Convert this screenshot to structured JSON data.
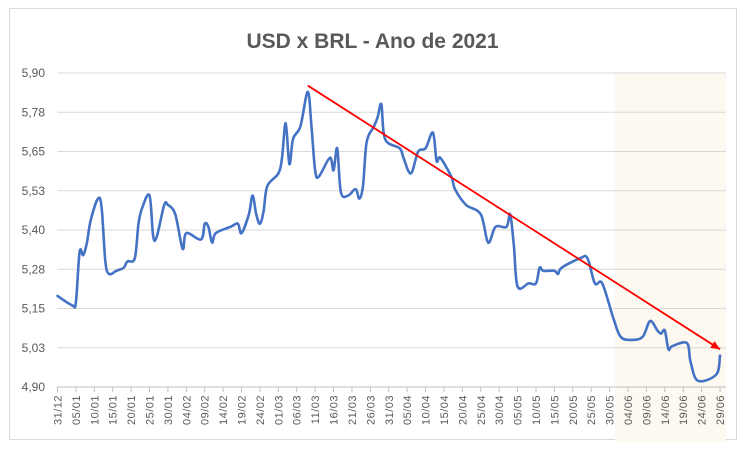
{
  "chart_data": {
    "type": "line",
    "title": "USD x BRL - Ano de 2021",
    "xlabel": "",
    "ylabel": "",
    "ylim": [
      4.9,
      5.9
    ],
    "yticks": [
      "4,90",
      "5,03",
      "5,15",
      "5,28",
      "5,40",
      "5,53",
      "5,65",
      "5,78",
      "5,90"
    ],
    "xticks": [
      "31/12",
      "05/01",
      "10/01",
      "15/01",
      "20/01",
      "25/01",
      "30/01",
      "04/02",
      "09/02",
      "14/02",
      "19/02",
      "24/02",
      "01/03",
      "06/03",
      "11/03",
      "16/03",
      "21/03",
      "26/03",
      "31/03",
      "05/04",
      "10/04",
      "15/04",
      "20/04",
      "25/04",
      "30/04",
      "05/05",
      "10/05",
      "15/05",
      "20/05",
      "25/05",
      "30/05",
      "04/06",
      "09/06",
      "14/06",
      "19/06",
      "24/06",
      "29/06"
    ],
    "xlim": [
      "31/12",
      "29/06"
    ],
    "grid": true,
    "line_color": "#4472c4",
    "highlight_region": {
      "from": "01/06",
      "to": "29/06",
      "color": "#fdf9f1"
    },
    "trend_arrow": {
      "from": [
        "09/03",
        5.86
      ],
      "to": [
        "29/06",
        5.02
      ],
      "color": "#ff0000"
    },
    "series": [
      {
        "values": [
          [
            "31/12",
            5.19
          ],
          [
            "04/01",
            5.16
          ],
          [
            "05/01",
            5.17
          ],
          [
            "06/01",
            5.33
          ],
          [
            "07/01",
            5.32
          ],
          [
            "08/01",
            5.36
          ],
          [
            "09/01",
            5.43
          ],
          [
            "11/01",
            5.5
          ],
          [
            "12/01",
            5.47
          ],
          [
            "13/01",
            5.3
          ],
          [
            "14/01",
            5.26
          ],
          [
            "16/01",
            5.27
          ],
          [
            "18/01",
            5.28
          ],
          [
            "19/01",
            5.3
          ],
          [
            "21/01",
            5.31
          ],
          [
            "22/01",
            5.42
          ],
          [
            "23/01",
            5.47
          ],
          [
            "25/01",
            5.51
          ],
          [
            "26/01",
            5.38
          ],
          [
            "27/01",
            5.38
          ],
          [
            "29/01",
            5.48
          ],
          [
            "30/01",
            5.48
          ],
          [
            "01/02",
            5.45
          ],
          [
            "03/02",
            5.34
          ],
          [
            "04/02",
            5.39
          ],
          [
            "08/02",
            5.37
          ],
          [
            "09/02",
            5.42
          ],
          [
            "10/02",
            5.41
          ],
          [
            "11/02",
            5.36
          ],
          [
            "12/02",
            5.39
          ],
          [
            "16/02",
            5.41
          ],
          [
            "18/02",
            5.42
          ],
          [
            "19/02",
            5.39
          ],
          [
            "21/02",
            5.45
          ],
          [
            "22/02",
            5.51
          ],
          [
            "23/02",
            5.45
          ],
          [
            "24/02",
            5.42
          ],
          [
            "25/02",
            5.46
          ],
          [
            "26/02",
            5.54
          ],
          [
            "01/03",
            5.58
          ],
          [
            "02/03",
            5.63
          ],
          [
            "03/03",
            5.74
          ],
          [
            "04/03",
            5.61
          ],
          [
            "05/03",
            5.69
          ],
          [
            "07/03",
            5.73
          ],
          [
            "09/03",
            5.84
          ],
          [
            "10/03",
            5.73
          ],
          [
            "11/03",
            5.59
          ],
          [
            "12/03",
            5.57
          ],
          [
            "15/03",
            5.63
          ],
          [
            "16/03",
            5.59
          ],
          [
            "17/03",
            5.66
          ],
          [
            "18/03",
            5.52
          ],
          [
            "20/03",
            5.51
          ],
          [
            "22/03",
            5.53
          ],
          [
            "23/03",
            5.5
          ],
          [
            "24/03",
            5.54
          ],
          [
            "25/03",
            5.68
          ],
          [
            "27/03",
            5.73
          ],
          [
            "28/03",
            5.76
          ],
          [
            "29/03",
            5.8
          ],
          [
            "30/03",
            5.69
          ],
          [
            "03/04",
            5.66
          ],
          [
            "04/04",
            5.63
          ],
          [
            "06/04",
            5.58
          ],
          [
            "08/04",
            5.65
          ],
          [
            "10/04",
            5.66
          ],
          [
            "12/04",
            5.71
          ],
          [
            "13/04",
            5.62
          ],
          [
            "14/04",
            5.63
          ],
          [
            "17/04",
            5.57
          ],
          [
            "18/04",
            5.53
          ],
          [
            "21/04",
            5.48
          ],
          [
            "25/04",
            5.45
          ],
          [
            "27/04",
            5.36
          ],
          [
            "29/04",
            5.41
          ],
          [
            "02/05",
            5.41
          ],
          [
            "03/05",
            5.45
          ],
          [
            "04/05",
            5.35
          ],
          [
            "05/05",
            5.22
          ],
          [
            "08/05",
            5.23
          ],
          [
            "10/05",
            5.23
          ],
          [
            "11/05",
            5.28
          ],
          [
            "12/05",
            5.27
          ],
          [
            "15/05",
            5.27
          ],
          [
            "16/05",
            5.26
          ],
          [
            "17/05",
            5.28
          ],
          [
            "22/05",
            5.31
          ],
          [
            "24/05",
            5.31
          ],
          [
            "26/05",
            5.23
          ],
          [
            "28/05",
            5.23
          ],
          [
            "31/05",
            5.12
          ],
          [
            "02/06",
            5.06
          ],
          [
            "05/06",
            5.05
          ],
          [
            "08/06",
            5.06
          ],
          [
            "10/06",
            5.11
          ],
          [
            "12/06",
            5.08
          ],
          [
            "13/06",
            5.07
          ],
          [
            "14/06",
            5.08
          ],
          [
            "15/06",
            5.02
          ],
          [
            "16/06",
            5.03
          ],
          [
            "20/06",
            5.04
          ],
          [
            "21/06",
            4.98
          ],
          [
            "23/06",
            4.92
          ],
          [
            "28/06",
            4.94
          ],
          [
            "29/06",
            5.0
          ]
        ]
      }
    ]
  }
}
